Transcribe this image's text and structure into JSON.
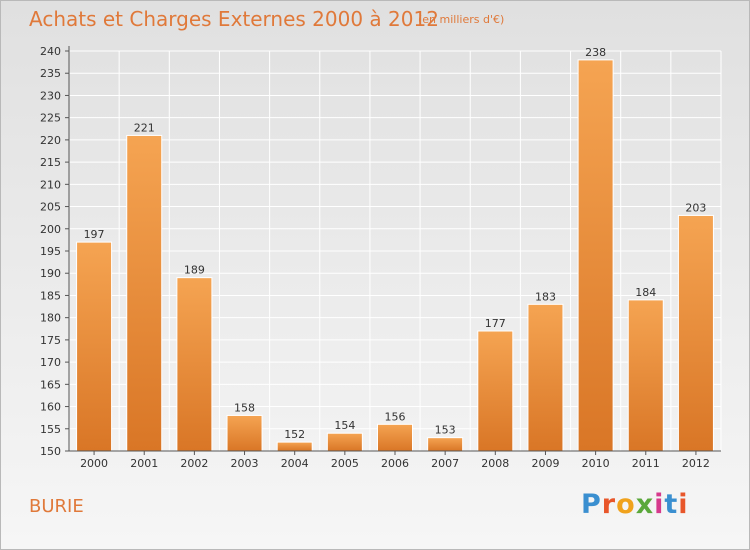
{
  "header": {
    "title": "Achats et Charges Externes 2000 à 2012",
    "unit": "(en milliers d'€)"
  },
  "footer": {
    "commune": "BURIE",
    "brand_letters": [
      "P",
      "r",
      "o",
      "x",
      "i",
      "t",
      "i"
    ],
    "brand_colors": [
      "#3a8fd0",
      "#e8562a",
      "#f0a21c",
      "#5aa83a",
      "#d63a8c",
      "#3a8fd0",
      "#e8562a"
    ]
  },
  "chart_data": {
    "type": "bar",
    "title": "Achats et Charges Externes 2000 à 2012",
    "subtitle": "(en milliers d'€)",
    "xlabel": "",
    "ylabel": "",
    "categories": [
      "2000",
      "2001",
      "2002",
      "2003",
      "2004",
      "2005",
      "2006",
      "2007",
      "2008",
      "2009",
      "2010",
      "2011",
      "2012"
    ],
    "values": [
      197,
      221,
      189,
      158,
      152,
      154,
      156,
      153,
      177,
      183,
      238,
      184,
      203
    ],
    "ylim": [
      150,
      240
    ],
    "yticks": [
      150,
      155,
      160,
      165,
      170,
      175,
      180,
      185,
      190,
      195,
      200,
      205,
      210,
      215,
      220,
      225,
      230,
      235,
      240
    ],
    "grid": true,
    "bar_color_top": "#f5a452",
    "bar_color_bottom": "#d97626",
    "grid_color": "#ffffff"
  }
}
